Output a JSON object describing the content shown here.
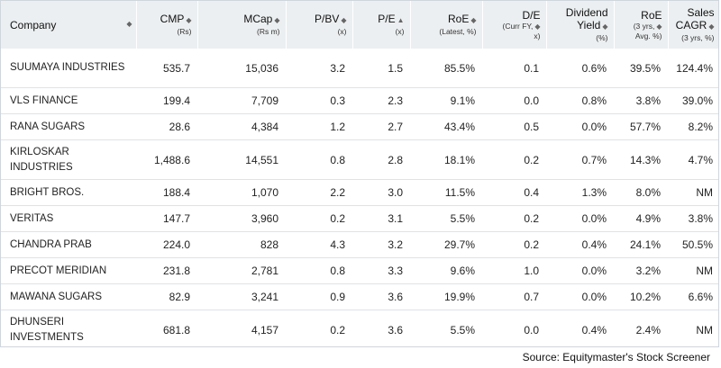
{
  "columns": [
    {
      "title": "Company",
      "sub": ""
    },
    {
      "title": "CMP",
      "sub": "(Rs)"
    },
    {
      "title": "MCap",
      "sub": "(Rs m)"
    },
    {
      "title": "P/BV",
      "sub": "(x)"
    },
    {
      "title": "P/E",
      "sub": "(x)"
    },
    {
      "title": "RoE",
      "sub": "(Latest, %)"
    },
    {
      "title": "D/E",
      "sub": "(Curr FY,",
      "sub2": "x)"
    },
    {
      "title": "Dividend",
      "title2": "Yield",
      "sub": "(%)"
    },
    {
      "title": "RoE",
      "sub": "(3 yrs,",
      "sub2": "Avg. %)"
    },
    {
      "title": "Sales",
      "title2": "CAGR",
      "sub": "(3 yrs, %)"
    }
  ],
  "sort_icon": "sort-updown-icon",
  "rows": [
    {
      "company": "SUUMAYA INDUSTRIES",
      "cmp": "535.7",
      "mcap": "15,036",
      "pbv": "3.2",
      "pe": "1.5",
      "roe": "85.5%",
      "de": "0.1",
      "dy": "0.6%",
      "roe3": "39.5%",
      "cagr": "124.4%"
    },
    {
      "company": "VLS FINANCE",
      "cmp": "199.4",
      "mcap": "7,709",
      "pbv": "0.3",
      "pe": "2.3",
      "roe": "9.1%",
      "de": "0.0",
      "dy": "0.8%",
      "roe3": "3.8%",
      "cagr": "39.0%"
    },
    {
      "company": "RANA SUGARS",
      "cmp": "28.6",
      "mcap": "4,384",
      "pbv": "1.2",
      "pe": "2.7",
      "roe": "43.4%",
      "de": "0.5",
      "dy": "0.0%",
      "roe3": "57.7%",
      "cagr": "8.2%"
    },
    {
      "company": "KIRLOSKAR INDUSTRIES",
      "cmp": "1,488.6",
      "mcap": "14,551",
      "pbv": "0.8",
      "pe": "2.8",
      "roe": "18.1%",
      "de": "0.2",
      "dy": "0.7%",
      "roe3": "14.3%",
      "cagr": "4.7%"
    },
    {
      "company": "BRIGHT BROS.",
      "cmp": "188.4",
      "mcap": "1,070",
      "pbv": "2.2",
      "pe": "3.0",
      "roe": "11.5%",
      "de": "0.4",
      "dy": "1.3%",
      "roe3": "8.0%",
      "cagr": "NM"
    },
    {
      "company": "VERITAS",
      "cmp": "147.7",
      "mcap": "3,960",
      "pbv": "0.2",
      "pe": "3.1",
      "roe": "5.5%",
      "de": "0.2",
      "dy": "0.0%",
      "roe3": "4.9%",
      "cagr": "3.8%"
    },
    {
      "company": "CHANDRA PRAB",
      "cmp": "224.0",
      "mcap": "828",
      "pbv": "4.3",
      "pe": "3.2",
      "roe": "29.7%",
      "de": "0.2",
      "dy": "0.4%",
      "roe3": "24.1%",
      "cagr": "50.5%"
    },
    {
      "company": "PRECOT MERIDIAN",
      "cmp": "231.8",
      "mcap": "2,781",
      "pbv": "0.8",
      "pe": "3.3",
      "roe": "9.6%",
      "de": "1.0",
      "dy": "0.0%",
      "roe3": "3.2%",
      "cagr": "NM"
    },
    {
      "company": "MAWANA SUGARS",
      "cmp": "82.9",
      "mcap": "3,241",
      "pbv": "0.9",
      "pe": "3.6",
      "roe": "19.9%",
      "de": "0.7",
      "dy": "0.0%",
      "roe3": "10.2%",
      "cagr": "6.6%"
    },
    {
      "company": "DHUNSERI INVESTMENTS",
      "cmp": "681.8",
      "mcap": "4,157",
      "pbv": "0.2",
      "pe": "3.6",
      "roe": "5.5%",
      "de": "0.0",
      "dy": "0.4%",
      "roe3": "2.4%",
      "cagr": "NM"
    }
  ],
  "source": "Source: Equitymaster's Stock Screener"
}
